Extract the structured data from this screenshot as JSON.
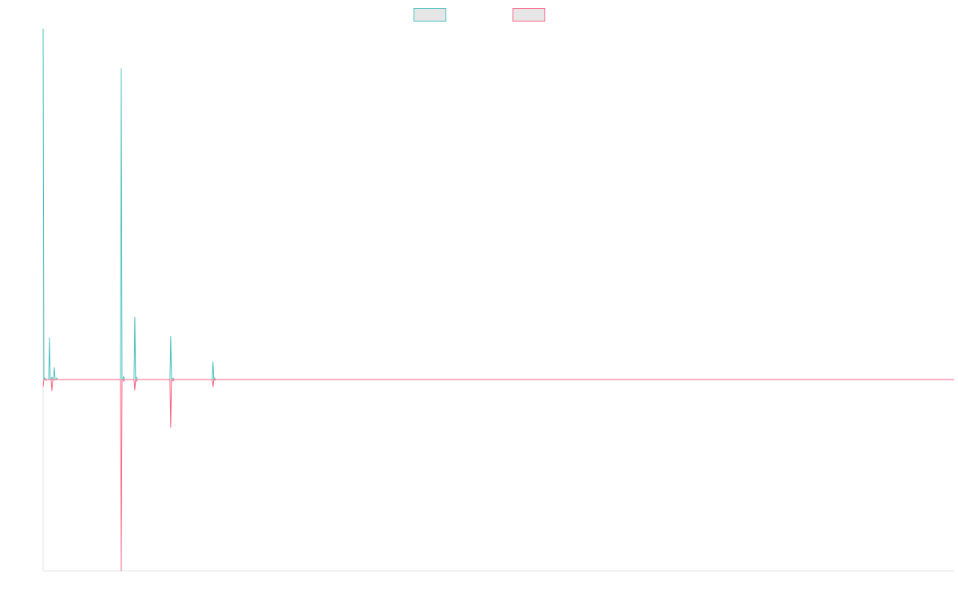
{
  "chart_data": {
    "type": "line",
    "title": "",
    "xlabel": "",
    "ylabel": "",
    "legend_position": "top-center",
    "grid": false,
    "ylim": [
      -240,
      440
    ],
    "x": [
      0,
      1,
      2,
      3,
      4,
      5,
      6,
      7,
      8,
      9,
      10,
      11,
      12,
      13,
      14,
      15,
      16,
      17,
      18,
      19,
      20,
      21,
      22,
      23,
      24,
      25,
      26,
      27,
      28,
      29,
      30,
      31,
      32,
      33,
      34,
      35,
      36,
      37,
      38,
      39,
      40,
      41,
      42,
      43,
      44,
      45,
      46,
      47,
      48,
      49,
      50,
      51,
      52,
      53,
      54,
      55,
      56,
      57,
      58,
      59,
      60,
      61,
      62,
      63,
      64,
      65,
      66,
      67,
      68,
      69,
      70,
      71,
      72,
      73,
      74,
      75,
      76,
      77,
      78,
      79,
      80,
      81,
      82,
      83,
      84,
      85,
      86,
      87,
      88,
      89,
      90,
      91,
      92,
      93,
      94,
      95,
      96,
      97,
      98,
      99,
      100,
      101,
      102,
      103,
      104,
      105,
      106,
      107,
      108,
      109,
      110,
      111,
      112,
      113,
      114,
      115,
      116,
      117,
      118,
      119,
      120,
      121,
      122,
      123,
      124,
      125,
      126,
      127,
      128,
      129,
      130,
      131,
      132,
      133,
      134,
      135,
      136,
      137,
      138,
      139,
      140,
      141,
      142,
      143,
      144,
      145,
      146,
      147,
      148,
      149,
      150,
      151,
      152,
      153,
      154,
      155,
      156,
      157,
      158,
      159,
      160,
      161,
      162,
      163,
      164,
      165,
      166,
      167,
      168,
      169,
      170,
      171,
      172,
      173,
      174,
      175,
      176,
      177,
      178,
      179,
      180,
      181,
      182,
      183,
      184,
      185,
      186,
      187,
      188,
      189,
      190,
      191,
      192,
      193,
      194,
      195,
      196,
      197,
      198,
      199,
      200,
      201,
      202,
      203,
      204,
      205,
      206,
      207,
      208,
      209,
      210,
      211,
      212,
      213,
      214,
      215,
      216,
      217,
      218,
      219,
      220,
      221,
      222,
      223,
      224,
      225,
      226,
      227,
      228,
      229,
      230,
      231,
      232,
      233,
      234,
      235,
      236,
      237,
      238,
      239,
      240,
      241,
      242,
      243,
      244,
      245,
      246,
      247,
      248,
      249,
      250,
      251,
      252,
      253,
      254,
      255,
      256,
      257,
      258,
      259,
      260,
      261,
      262,
      263,
      264,
      265,
      266,
      267,
      268,
      269,
      270,
      271,
      272,
      273,
      274,
      275,
      276,
      277,
      278,
      279,
      280,
      281,
      282,
      283,
      284,
      285,
      286,
      287,
      288,
      289,
      290,
      291,
      292,
      293,
      294,
      295,
      296,
      297,
      298,
      299,
      300,
      301,
      302,
      303,
      304,
      305,
      306,
      307,
      308,
      309,
      310,
      311,
      312,
      313,
      314,
      315,
      316,
      317,
      318,
      319,
      320,
      321,
      322,
      323,
      324,
      325,
      326,
      327,
      328,
      329,
      330,
      331,
      332,
      333,
      334,
      335,
      336,
      337,
      338,
      339,
      340,
      341,
      342,
      343,
      344,
      345,
      346,
      347,
      348,
      349,
      350,
      351,
      352,
      353,
      354,
      355,
      356,
      357,
      358,
      359,
      360,
      361,
      362,
      363,
      364,
      365,
      366,
      367,
      368,
      369,
      370,
      371,
      372,
      373,
      374,
      375,
      376,
      377,
      378,
      379,
      380,
      381,
      382,
      383,
      384,
      385,
      386,
      387,
      388,
      389,
      390,
      391,
      392,
      393,
      394,
      395,
      396,
      397,
      398,
      399,
      400,
      401,
      402,
      403,
      404,
      405,
      406,
      407,
      408,
      409,
      410,
      411,
      412,
      413,
      414,
      415,
      416,
      417,
      418,
      419,
      420,
      421,
      422,
      423,
      424,
      425,
      426,
      427,
      428,
      429,
      430,
      431,
      432,
      433,
      434,
      435,
      436,
      437,
      438,
      439,
      440,
      441,
      442,
      443,
      444,
      445,
      446,
      447,
      448,
      449,
      450,
      451,
      452,
      453,
      454,
      455,
      456,
      457,
      458,
      459,
      460,
      461,
      462,
      463,
      464,
      465,
      466,
      467,
      468,
      469,
      470,
      471,
      472,
      473,
      474,
      475,
      476,
      477,
      478,
      479,
      480,
      481,
      482,
      483,
      484,
      485,
      486,
      487,
      488,
      489,
      490,
      491,
      492,
      493,
      494,
      495,
      496,
      497,
      498,
      499,
      500,
      501,
      502,
      503,
      504,
      505,
      506,
      507,
      508,
      509,
      510,
      511,
      512,
      513,
      514,
      515,
      516,
      517,
      518,
      519,
      520,
      521,
      522,
      523,
      524,
      525,
      526,
      527,
      528,
      529,
      530,
      531,
      532,
      533,
      534,
      535,
      536,
      537,
      538,
      539,
      540,
      541,
      542,
      543,
      544,
      545,
      546,
      547,
      548,
      549,
      550,
      551,
      552,
      553,
      554,
      555,
      556,
      557,
      558,
      559,
      560,
      561,
      562,
      563,
      564,
      565,
      566,
      567,
      568,
      569,
      570,
      571,
      572,
      573,
      574,
      575,
      576,
      577,
      578,
      579,
      580,
      581,
      582,
      583,
      584,
      585,
      586,
      587,
      588,
      589,
      590,
      591,
      592,
      593,
      594,
      595,
      596,
      597,
      598,
      599,
      600,
      601,
      602,
      603,
      604,
      605,
      606,
      607,
      608,
      609,
      610,
      611,
      612,
      613,
      614,
      615,
      616,
      617,
      618,
      619,
      620,
      621,
      622,
      623,
      624,
      625,
      626,
      627,
      628,
      629,
      630,
      631,
      632,
      633,
      634,
      635,
      636,
      637,
      638,
      639,
      640,
      641,
      642,
      643,
      644,
      645,
      646,
      647,
      648,
      649,
      650,
      651,
      652,
      653,
      654,
      655,
      656,
      657,
      658,
      659,
      660,
      661,
      662,
      663,
      664,
      665,
      666,
      667,
      668,
      669,
      670,
      671,
      672,
      673,
      674,
      675,
      676,
      677,
      678,
      679,
      680,
      681,
      682,
      683,
      684,
      685,
      686,
      687,
      688,
      689,
      690,
      691,
      692,
      693,
      694,
      695,
      696,
      697,
      698,
      699,
      700,
      701,
      702,
      703,
      704,
      705,
      706,
      707,
      708,
      709,
      710,
      711,
      712,
      713,
      714,
      715,
      716,
      717,
      718,
      719,
      720,
      721,
      722,
      723,
      724,
      725,
      726,
      727,
      728,
      729,
      730,
      731,
      732,
      733,
      734,
      735,
      736,
      737,
      738,
      739,
      740,
      741,
      742,
      743,
      744,
      745,
      746,
      747,
      748,
      749,
      750,
      751,
      752,
      753,
      754,
      755,
      756,
      757,
      758,
      759,
      760,
      761,
      762,
      763,
      764,
      765,
      766,
      767,
      768,
      769,
      770,
      771,
      772,
      773,
      774,
      775,
      776,
      777,
      778,
      779,
      780,
      781,
      782,
      783,
      784,
      785,
      786,
      787,
      788,
      789,
      790,
      791,
      792,
      793,
      794,
      795,
      796,
      797,
      798,
      799,
      800,
      801,
      802,
      803,
      804,
      805,
      806,
      807,
      808,
      809,
      810,
      811,
      812,
      813,
      814,
      815,
      816,
      817,
      818,
      819,
      820,
      821,
      822,
      823,
      824,
      825,
      826,
      827,
      828,
      829,
      830,
      831,
      832,
      833,
      834,
      835,
      836,
      837,
      838,
      839,
      840,
      841,
      842,
      843,
      844,
      845,
      846,
      847,
      848,
      849,
      850,
      851,
      852,
      853,
      854,
      855,
      856,
      857,
      858,
      859,
      860,
      861,
      862,
      863,
      864,
      865,
      866,
      867,
      868,
      869,
      870,
      871,
      872,
      873,
      874,
      875,
      876,
      877,
      878,
      879,
      880,
      881,
      882,
      883,
      884,
      885,
      886,
      887,
      888,
      889,
      890,
      891,
      892,
      893,
      894,
      895,
      896,
      897,
      898,
      899,
      900,
      901,
      902,
      903,
      904,
      905,
      906,
      907,
      908,
      909,
      910,
      911,
      912,
      913,
      914,
      915,
      916,
      917,
      918,
      919,
      920,
      921,
      922,
      923,
      924,
      925,
      926,
      927,
      928,
      929,
      930,
      931,
      932,
      933,
      934,
      935,
      936,
      937,
      938,
      939,
      940,
      941,
      942,
      943,
      944,
      945,
      946,
      947,
      948,
      949,
      950,
      951,
      952,
      953,
      954,
      955,
      956,
      957,
      958,
      959,
      960,
      961,
      962,
      963,
      964,
      965,
      966,
      967,
      968,
      969,
      970,
      971,
      972,
      973,
      974,
      975,
      976,
      977,
      978,
      979,
      980,
      981,
      982,
      983,
      984,
      985,
      986,
      987,
      988,
      989,
      990,
      991,
      992,
      993,
      994,
      995,
      996,
      997,
      998,
      999,
      1000,
      1001,
      1002,
      1003,
      1004,
      1005,
      1006,
      1007,
      1008,
      1009,
      1010,
      1011,
      1012,
      1013,
      1014,
      1015,
      1016,
      1017,
      1018,
      1019,
      1020,
      1021,
      1022,
      1023,
      1024,
      1025,
      1026,
      1027,
      1028,
      1029,
      1030,
      1031,
      1032,
      1033,
      1034,
      1035,
      1036,
      1037,
      1038,
      1039,
      1040,
      1041,
      1042,
      1043,
      1044,
      1045,
      1046,
      1047,
      1048,
      1049,
      1050,
      1051,
      1052,
      1053,
      1054,
      1055,
      1056,
      1057,
      1058,
      1059,
      1060,
      1061,
      1062,
      1063,
      1064,
      1065,
      1066,
      1067,
      1068,
      1069,
      1070,
      1071,
      1072,
      1073,
      1074,
      1075,
      1076,
      1077,
      1078,
      1079,
      1080,
      1081,
      1082,
      1083,
      1084,
      1085,
      1086,
      1087,
      1088,
      1089,
      1090,
      1091,
      1092,
      1093,
      1094,
      1095,
      1096,
      1097,
      1098,
      1099,
      1100,
      1101,
      1102,
      1103,
      1104,
      1105,
      1106,
      1107,
      1108,
      1109,
      1110,
      1111,
      1112,
      1113,
      1114,
      1115,
      1116,
      1117,
      1118,
      1119,
      1120,
      1121,
      1122,
      1123,
      1124,
      1125,
      1126,
      1127,
      1128,
      1129,
      1130,
      1131,
      1132,
      1133,
      1134,
      1135,
      1136,
      1137,
      1138,
      1139,
      1140,
      1141,
      1142
    ],
    "series": [
      {
        "name": "",
        "color": "#4bc0c0",
        "fill": "#e6e6e6",
        "spikes": [
          {
            "x": 0,
            "y": 440
          },
          {
            "x": 2,
            "y": 2
          },
          {
            "x": 8,
            "y": 52
          },
          {
            "x": 11,
            "y": 3
          },
          {
            "x": 14,
            "y": 15
          },
          {
            "x": 17,
            "y": 2
          },
          {
            "x": 98,
            "y": 390
          },
          {
            "x": 101,
            "y": 4
          },
          {
            "x": 115,
            "y": 78
          },
          {
            "x": 117,
            "y": 3
          },
          {
            "x": 160,
            "y": 54
          },
          {
            "x": 163,
            "y": 2
          },
          {
            "x": 213,
            "y": 22
          },
          {
            "x": 215,
            "y": 2
          }
        ]
      },
      {
        "name": "",
        "color": "#ff6384",
        "fill": "#e6e6e6",
        "spikes": [
          {
            "x": 0,
            "y": -9
          },
          {
            "x": 4,
            "y": -1
          },
          {
            "x": 11,
            "y": -14
          },
          {
            "x": 14,
            "y": -1
          },
          {
            "x": 98,
            "y": -240
          },
          {
            "x": 101,
            "y": -2
          },
          {
            "x": 115,
            "y": -13
          },
          {
            "x": 117,
            "y": -2
          },
          {
            "x": 160,
            "y": -60
          },
          {
            "x": 163,
            "y": -2
          },
          {
            "x": 213,
            "y": -9
          },
          {
            "x": 215,
            "y": -1
          }
        ]
      }
    ]
  }
}
